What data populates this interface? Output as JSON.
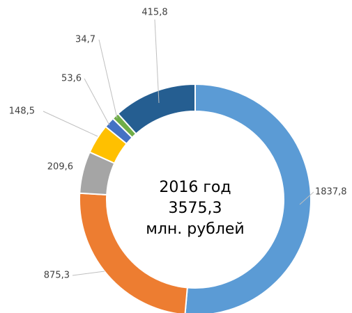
{
  "chart_data": {
    "type": "donut",
    "center_text": [
      "2016 год",
      "3575,3",
      "млн. рублей"
    ],
    "values": [
      1837.8,
      875.3,
      209.6,
      148.5,
      53.6,
      34.7,
      415.8
    ],
    "value_labels": [
      "1837,8",
      "875,3",
      "209,6",
      "148,5",
      "53,6",
      "34,7",
      "415,8"
    ],
    "colors": [
      "#5b9bd5",
      "#ed7d31",
      "#a5a5a5",
      "#ffc000",
      "#4472c4",
      "#70ad47",
      "#255e91"
    ]
  }
}
